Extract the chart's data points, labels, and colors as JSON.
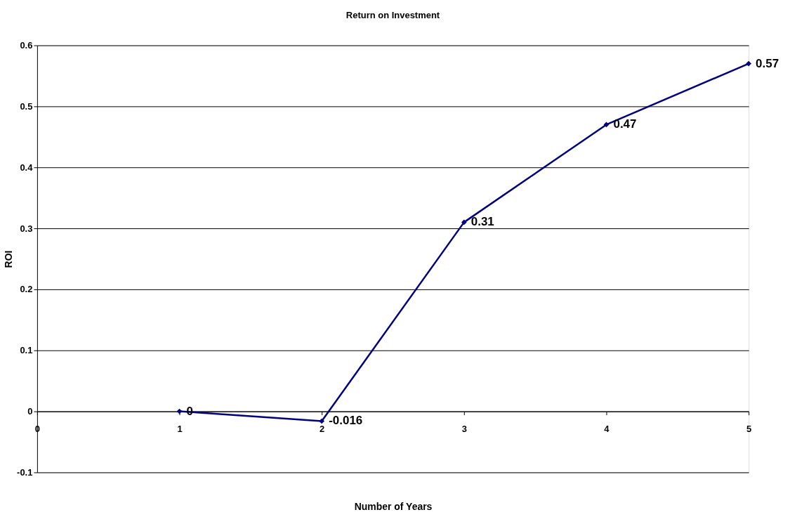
{
  "chart_data": {
    "type": "line",
    "title": "Return on Investment",
    "xlabel": "Number of Years",
    "ylabel": "ROI",
    "x": [
      1,
      2,
      3,
      4,
      5
    ],
    "series": [
      {
        "color": "#000080",
        "values": [
          0,
          -0.016,
          0.31,
          0.47,
          0.57
        ]
      }
    ],
    "xlim": [
      0,
      5
    ],
    "xticks": [
      0,
      1,
      2,
      3,
      4,
      5
    ],
    "ylim": [
      -0.1,
      0.6
    ],
    "yticks": [
      -0.1,
      0,
      0.1,
      0.2,
      0.3,
      0.4,
      0.5,
      0.6
    ],
    "grid": "y",
    "marker": "diamond",
    "line_style": "solid",
    "data_labels": true
  }
}
